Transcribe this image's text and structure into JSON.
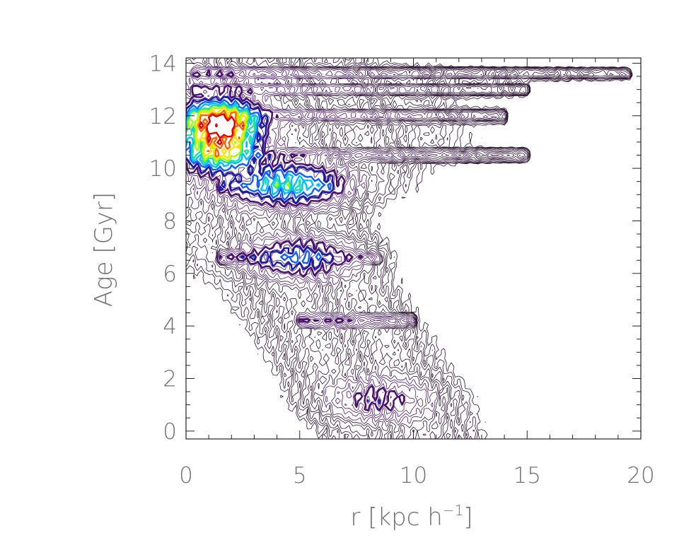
{
  "chart_data": {
    "type": "contour",
    "xlabel": "r",
    "xlabel_unit": "kpc h",
    "xlabel_exponent": "−1",
    "ylabel": "Age [Gyr]",
    "xlim": [
      0,
      20
    ],
    "ylim": [
      -0.3,
      14.2
    ],
    "x_ticks": [
      0,
      5,
      10,
      15,
      20
    ],
    "y_ticks": [
      0,
      2,
      4,
      6,
      8,
      10,
      12,
      14
    ],
    "x_tick_labels": [
      "0",
      "5",
      "10",
      "15",
      "20"
    ],
    "y_tick_labels": [
      "0",
      "2",
      "4",
      "6",
      "8",
      "10",
      "12",
      "14"
    ],
    "colormap": [
      "#000000",
      "#3a0a4a",
      "#4b0f6e",
      "#1a1aa8",
      "#1060ff",
      "#00c0ff",
      "#20e0a0",
      "#a0ff00",
      "#ffe000",
      "#ff6000",
      "#e00000"
    ],
    "grid": false,
    "density_peaks": [
      {
        "r": 1.5,
        "age": 11.7,
        "level": 1.0
      },
      {
        "r": 1.5,
        "age": 10.7,
        "level": 0.55
      },
      {
        "r": 4.5,
        "age": 9.4,
        "level": 0.3
      },
      {
        "r": 5.0,
        "age": 6.6,
        "level": 0.15
      },
      {
        "r": 8.5,
        "age": 1.2,
        "level": 0.08
      }
    ],
    "age_bands": [
      {
        "age": 13.6,
        "r_min": 0.3,
        "r_max": 19.5
      },
      {
        "age": 13.0,
        "r_min": 0.3,
        "r_max": 15.0
      },
      {
        "age": 12.0,
        "r_min": 0.3,
        "r_max": 14.0
      },
      {
        "age": 10.5,
        "r_min": 0.3,
        "r_max": 15.0
      },
      {
        "age": 9.3,
        "r_min": 1.5,
        "r_max": 6.5
      },
      {
        "age": 6.6,
        "r_min": 1.5,
        "r_max": 8.5
      },
      {
        "age": 4.2,
        "r_min": 5.0,
        "r_max": 10.0
      }
    ]
  }
}
